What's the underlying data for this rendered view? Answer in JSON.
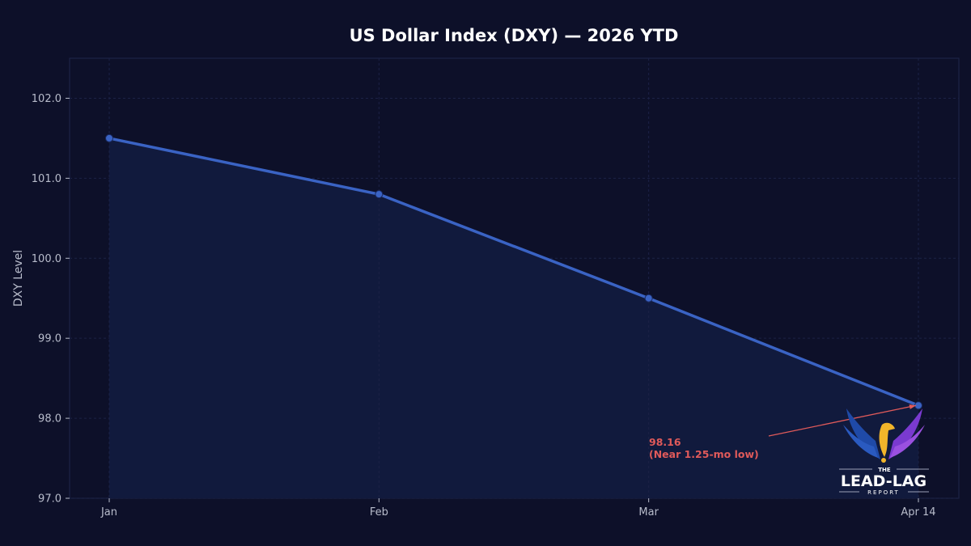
{
  "chart_data": {
    "type": "line",
    "title": "US Dollar Index (DXY) — 2026 YTD",
    "xlabel": "",
    "ylabel": "DXY Level",
    "categories": [
      "Jan",
      "Feb",
      "Mar",
      "Apr 14"
    ],
    "series": [
      {
        "values": [
          101.5,
          100.8,
          99.5,
          98.16
        ]
      }
    ],
    "ylim": [
      97.0,
      102.5
    ],
    "yticks": [
      "97.0",
      "98.0",
      "99.0",
      "100.0",
      "101.0",
      "102.0"
    ],
    "grid": true,
    "area_fill": true,
    "annotation": {
      "line1": "98.16",
      "line2": "(Near 1.25-mo low)",
      "target_index": 3,
      "color": "#e05a5a"
    },
    "colors": {
      "line": "#3a63c4",
      "background": "#0d1029",
      "fill": "#111a3d",
      "text": "#b8bccb"
    }
  },
  "logo": {
    "the": "THE",
    "name": "LEAD-LAG",
    "sub": "REPORT"
  }
}
